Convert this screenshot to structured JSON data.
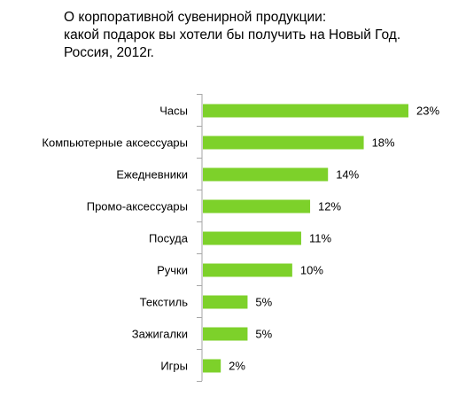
{
  "chart_data": {
    "type": "bar",
    "orientation": "horizontal",
    "title_lines": [
      "О корпоративной сувенирной продукции:",
      "какой подарок вы хотели бы получить на Новый Год.",
      "Россия, 2012г."
    ],
    "categories": [
      "Часы",
      "Компьютерные аксессуары",
      "Ежедневники",
      "Промо-аксессуары",
      "Посуда",
      "Ручки",
      "Текстиль",
      "Зажигалки",
      "Игры"
    ],
    "values": [
      23,
      18,
      14,
      12,
      11,
      10,
      5,
      5,
      2
    ],
    "value_labels": [
      "23%",
      "18%",
      "14%",
      "12%",
      "11%",
      "10%",
      "5%",
      "5%",
      "2%"
    ],
    "unit": "%",
    "xlim": [
      0,
      23
    ],
    "grid": false,
    "legend": "none",
    "colors": {
      "bar": "#7dd12a",
      "axis": "#a6a6a6"
    }
  }
}
